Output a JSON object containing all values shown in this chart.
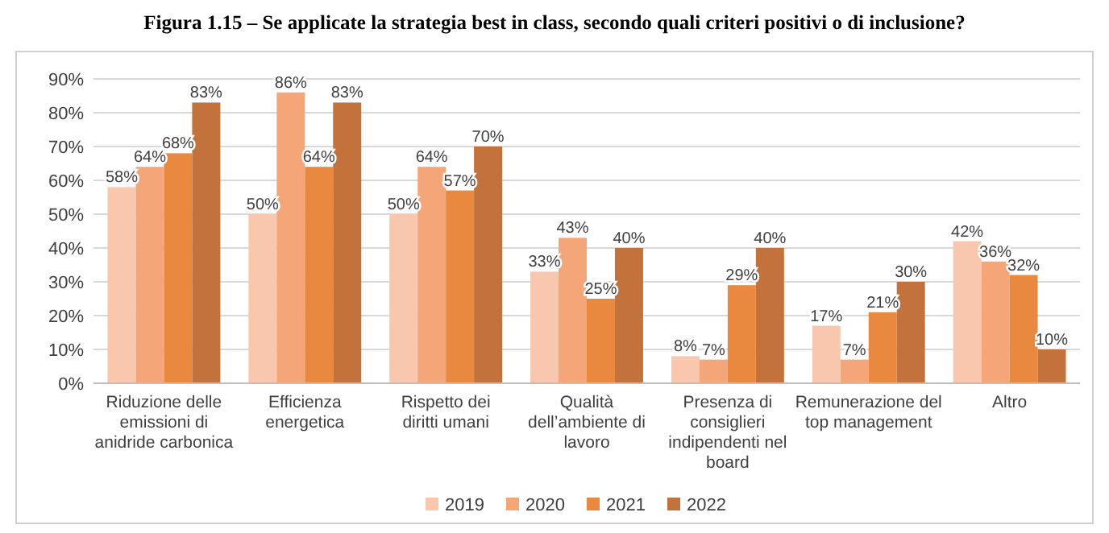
{
  "chart_data": {
    "type": "bar",
    "title": "Figura 1.15 – Se applicate la strategia best in class, secondo quali criteri positivi o di inclusione?",
    "categories": [
      "Riduzione delle emissioni di anidride carbonica",
      "Efficienza energetica",
      "Rispetto dei diritti umani",
      "Qualità dell’ambiente di lavoro",
      "Presenza di consiglieri indipendenti nel board",
      "Remunerazione del top management",
      "Altro"
    ],
    "series": [
      {
        "name": "2019",
        "color": "#f9c7ae",
        "values": [
          58,
          50,
          50,
          33,
          8,
          17,
          42
        ],
        "value_labels": [
          "58%",
          "50%",
          "50%",
          "33%",
          "8%",
          "17%",
          "42%"
        ]
      },
      {
        "name": "2020",
        "color": "#f5a679",
        "values": [
          64,
          86,
          64,
          43,
          7,
          7,
          36
        ],
        "value_labels": [
          "64%",
          "86%",
          "64%",
          "43%",
          "7%",
          "7%",
          "36%"
        ]
      },
      {
        "name": "2021",
        "color": "#e8893f",
        "values": [
          68,
          64,
          57,
          25,
          29,
          21,
          32
        ],
        "value_labels": [
          "68%",
          "64%",
          "57%",
          "25%",
          "29%",
          "21%",
          "32%"
        ]
      },
      {
        "name": "2022",
        "color": "#c2723a",
        "values": [
          83,
          83,
          70,
          40,
          40,
          30,
          10
        ],
        "value_labels": [
          "83%",
          "83%",
          "70%",
          "40%",
          "40%",
          "30%",
          "10%"
        ]
      }
    ],
    "ylim": [
      0,
      90
    ],
    "yticks": [
      {
        "value": 0,
        "label": "0%"
      },
      {
        "value": 10,
        "label": "10%"
      },
      {
        "value": 20,
        "label": "20%"
      },
      {
        "value": 30,
        "label": "30%"
      },
      {
        "value": 40,
        "label": "40%"
      },
      {
        "value": 50,
        "label": "50%"
      },
      {
        "value": 60,
        "label": "60%"
      },
      {
        "value": 70,
        "label": "70%"
      },
      {
        "value": 80,
        "label": "80%"
      },
      {
        "value": 90,
        "label": "90%"
      }
    ],
    "grid": "y",
    "legend": "bottom"
  }
}
